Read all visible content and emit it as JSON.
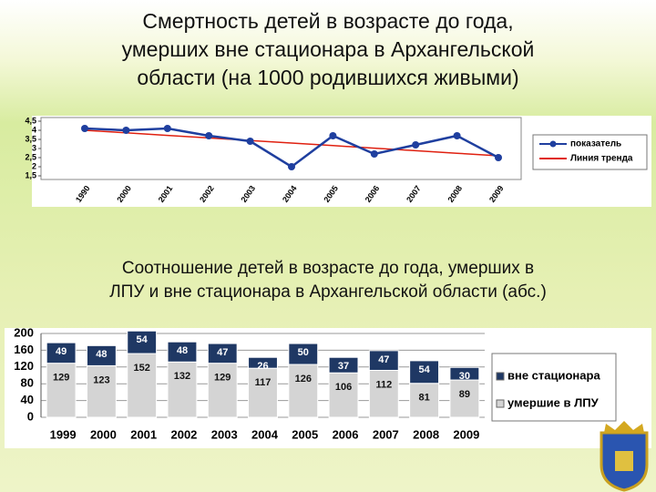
{
  "chart_data": [
    {
      "type": "line",
      "title": "Смертность детей в возрасте до года,\nумерших вне стационара в Архангельской\nобласти   (на 1000 родившихся живыми)",
      "categories": [
        "1990",
        "2000",
        "2001",
        "2002",
        "2003",
        "2004",
        "2005",
        "2006",
        "2007",
        "2008",
        "2009"
      ],
      "series": [
        {
          "name": "показатель",
          "color": "#1f3f9f",
          "values": [
            4.1,
            4.0,
            4.1,
            3.7,
            3.4,
            2.0,
            3.7,
            2.7,
            3.2,
            3.7,
            2.5
          ]
        },
        {
          "name": "Линия тренда",
          "color": "#e02010",
          "values": [
            4.0,
            3.86,
            3.72,
            3.58,
            3.44,
            3.3,
            3.16,
            3.02,
            2.88,
            2.74,
            2.6
          ]
        }
      ],
      "ylim": [
        1.5,
        4.5
      ],
      "yticks": [
        {
          "value": 1.5,
          "label": "1,5"
        },
        2,
        {
          "value": 2.5,
          "label": "2,5"
        },
        3,
        {
          "value": 3.5,
          "label": "3,5"
        },
        4,
        {
          "value": 4.5,
          "label": "4,5"
        }
      ],
      "legend": "right"
    },
    {
      "type": "bar",
      "title": "Соотношение детей в возрасте до года, умерших в\nЛПУ и вне стационара в Архангельской области (абс.)",
      "categories": [
        "1999",
        "2000",
        "2001",
        "2002",
        "2003",
        "2004",
        "2005",
        "2006",
        "2007",
        "2008",
        "2009"
      ],
      "series": [
        {
          "name": "умершие в ЛПУ",
          "color": "#d4d4d4",
          "values": [
            129,
            123,
            152,
            132,
            129,
            117,
            126,
            106,
            112,
            81,
            89
          ]
        },
        {
          "name": "вне стационара",
          "color": "#1f3864",
          "values": [
            49,
            48,
            54,
            48,
            47,
            26,
            50,
            37,
            47,
            54,
            30
          ]
        }
      ],
      "stacked": true,
      "ylim": [
        0,
        200
      ],
      "yticks": [
        0,
        40,
        80,
        120,
        160,
        200
      ],
      "grid": true,
      "legend": "right"
    }
  ]
}
